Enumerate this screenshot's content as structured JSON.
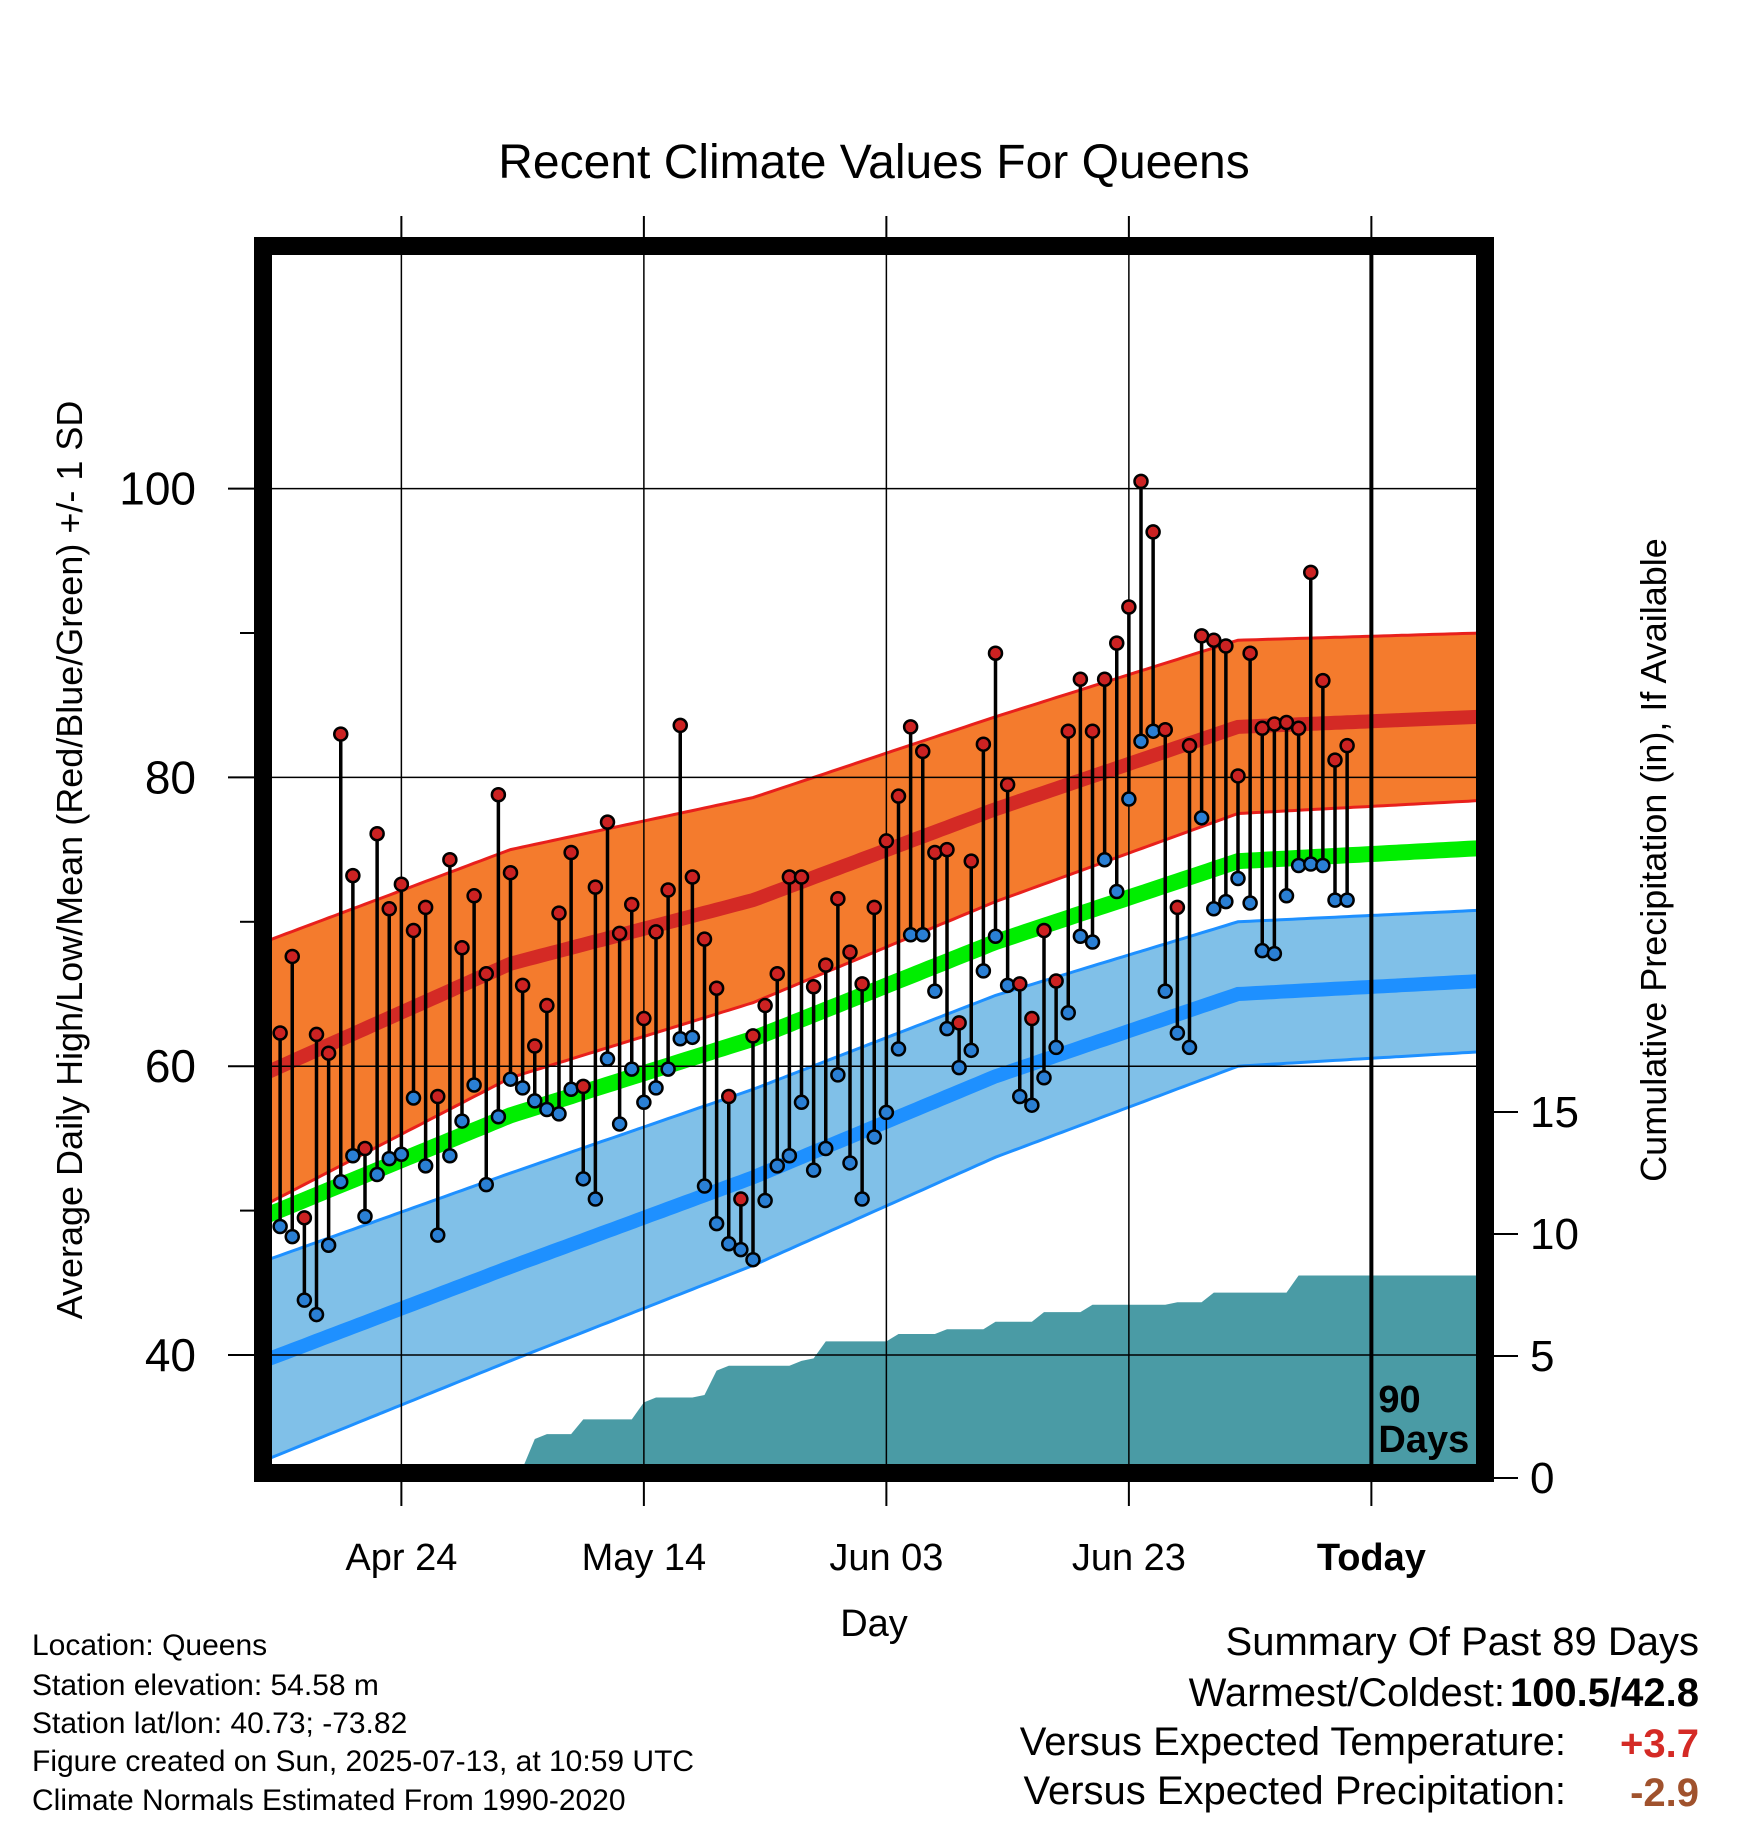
{
  "chart_data": {
    "type": "line",
    "title": "Recent Climate Values For Queens",
    "xlabel": "Day",
    "ylabel": "Average Daily High/Low/Mean (Red/Blue/Green) +/- 1 SD",
    "y2label": "Cumulative Precipitation (in), If Available",
    "ylim": [
      32,
      106
    ],
    "y2lim": [
      0,
      25.4
    ],
    "y_ticks": [
      40,
      60,
      80,
      100
    ],
    "y2_ticks": [
      0,
      5,
      10,
      15
    ],
    "x_tick_labels": [
      {
        "day": 11,
        "label": "Apr 24"
      },
      {
        "day": 31,
        "label": "May 14"
      },
      {
        "day": 51,
        "label": "Jun 03"
      },
      {
        "day": 71,
        "label": "Jun 23"
      },
      {
        "day": 91,
        "label": "Today"
      }
    ],
    "today_day": 91,
    "today_annotation": [
      "90",
      "Days"
    ],
    "grid": true,
    "colors": {
      "high_band": "#f47b2d",
      "high_mean": "#d42a25",
      "high_edge": "#e8201c",
      "low_band": "#80c0e8",
      "low_mean": "#1e90ff",
      "low_edge": "#1e90ff",
      "mean_line": "#00ee00",
      "precip": "#4a9ba5",
      "high_marker": "#cc2222",
      "low_marker": "#2a7fd4"
    },
    "normals": {
      "high_mean": [
        [
          0,
          59.6
        ],
        [
          20,
          67.1
        ],
        [
          40,
          71.5
        ],
        [
          60,
          77.8
        ],
        [
          80,
          83.5
        ],
        [
          100,
          84.2
        ]
      ],
      "high_sd": [
        [
          0,
          9.1
        ],
        [
          20,
          7.9
        ],
        [
          40,
          7.1
        ],
        [
          60,
          6.4
        ],
        [
          80,
          6.0
        ],
        [
          100,
          5.8
        ]
      ],
      "low_mean": [
        [
          0,
          39.7
        ],
        [
          20,
          46.1
        ],
        [
          40,
          52.3
        ],
        [
          60,
          59.3
        ],
        [
          80,
          65.0
        ],
        [
          100,
          65.9
        ]
      ],
      "low_sd": [
        [
          0,
          6.9
        ],
        [
          20,
          6.5
        ],
        [
          40,
          6.1
        ],
        [
          60,
          5.6
        ],
        [
          80,
          5.0
        ],
        [
          100,
          4.9
        ]
      ],
      "mean_normal": [
        [
          0,
          49.7
        ],
        [
          20,
          56.6
        ],
        [
          40,
          61.9
        ],
        [
          60,
          68.6
        ],
        [
          80,
          74.2
        ],
        [
          100,
          75.1
        ]
      ]
    },
    "days": [
      1,
      2,
      3,
      4,
      5,
      6,
      7,
      8,
      9,
      10,
      11,
      12,
      13,
      14,
      15,
      16,
      17,
      18,
      19,
      20,
      21,
      22,
      23,
      24,
      25,
      26,
      27,
      28,
      29,
      30,
      31,
      32,
      33,
      34,
      35,
      36,
      37,
      38,
      39,
      40,
      41,
      42,
      43,
      44,
      45,
      46,
      47,
      48,
      49,
      50,
      51,
      52,
      53,
      54,
      55,
      56,
      57,
      58,
      59,
      60,
      61,
      62,
      63,
      64,
      65,
      66,
      67,
      68,
      69,
      70,
      71,
      72,
      73,
      74,
      75,
      76,
      77,
      78,
      79,
      80,
      81,
      82,
      83,
      84,
      85,
      86,
      87,
      88,
      89
    ],
    "series": [
      {
        "name": "Red",
        "values": [
          62.3,
          67.6,
          49.5,
          62.2,
          60.9,
          83.0,
          73.2,
          54.3,
          76.1,
          70.9,
          72.6,
          69.4,
          71.0,
          57.9,
          74.3,
          68.2,
          71.8,
          66.4,
          78.8,
          73.4,
          65.6,
          61.4,
          64.2,
          70.6,
          74.8,
          58.6,
          72.4,
          76.9,
          69.2,
          71.2,
          63.3,
          69.3,
          72.2,
          83.6,
          73.1,
          68.8,
          65.4,
          57.9,
          50.8,
          62.1,
          64.2,
          66.4,
          73.1,
          73.1,
          65.5,
          67.0,
          71.6,
          67.9,
          65.7,
          71.0,
          75.6,
          78.7,
          83.5,
          81.8,
          74.8,
          75.0,
          63.0,
          74.2,
          82.3,
          88.6,
          79.5,
          65.7,
          63.3,
          69.4,
          65.9,
          83.2,
          86.8,
          83.2,
          86.8,
          89.3,
          91.8,
          100.5,
          97.0,
          83.3,
          71.0,
          82.2,
          89.8,
          89.5,
          89.1,
          80.1,
          88.6,
          83.4,
          83.7,
          83.8,
          83.4,
          94.2,
          86.7,
          81.2,
          82.2
        ]
      },
      {
        "name": "Blue",
        "values": [
          48.9,
          48.2,
          43.8,
          42.8,
          47.6,
          52.0,
          53.8,
          49.6,
          52.5,
          53.6,
          53.9,
          57.8,
          53.1,
          48.3,
          53.8,
          56.2,
          58.7,
          51.8,
          56.5,
          59.1,
          58.5,
          57.6,
          57.0,
          56.7,
          58.4,
          52.2,
          50.8,
          60.5,
          56.0,
          59.8,
          57.5,
          58.5,
          59.8,
          61.9,
          62.0,
          51.7,
          49.1,
          47.7,
          47.3,
          46.6,
          50.7,
          53.1,
          53.8,
          57.5,
          52.8,
          54.3,
          59.4,
          53.3,
          50.8,
          55.1,
          56.8,
          61.2,
          69.1,
          69.1,
          65.2,
          62.6,
          59.9,
          61.1,
          66.6,
          69.0,
          65.6,
          57.9,
          57.3,
          59.2,
          61.3,
          63.7,
          69.0,
          68.6,
          74.3,
          72.1,
          78.5,
          82.5,
          83.2,
          65.2,
          62.3,
          61.3,
          77.2,
          70.9,
          71.4,
          73.0,
          71.3,
          68.0,
          67.8,
          71.8,
          73.9,
          74.0,
          73.9,
          71.5,
          71.5
        ]
      }
    ],
    "precip_cumulative": [
      [
        11,
        0.0
      ],
      [
        12,
        0.2
      ],
      [
        13,
        0.2
      ],
      [
        20,
        0.2
      ],
      [
        21,
        0.4
      ],
      [
        22,
        1.6
      ],
      [
        23,
        1.8
      ],
      [
        25,
        1.8
      ],
      [
        26,
        2.4
      ],
      [
        30,
        2.4
      ],
      [
        31,
        3.1
      ],
      [
        32,
        3.3
      ],
      [
        35,
        3.3
      ],
      [
        36,
        3.4
      ],
      [
        37,
        4.4
      ],
      [
        38,
        4.6
      ],
      [
        43,
        4.6
      ],
      [
        44,
        4.8
      ],
      [
        45,
        4.9
      ],
      [
        46,
        5.6
      ],
      [
        51,
        5.6
      ],
      [
        52,
        5.9
      ],
      [
        55,
        5.9
      ],
      [
        56,
        6.1
      ],
      [
        59,
        6.1
      ],
      [
        60,
        6.4
      ],
      [
        63,
        6.4
      ],
      [
        64,
        6.8
      ],
      [
        67,
        6.8
      ],
      [
        68,
        7.1
      ],
      [
        74,
        7.1
      ],
      [
        75,
        7.2
      ],
      [
        77,
        7.2
      ],
      [
        78,
        7.6
      ],
      [
        84,
        7.6
      ],
      [
        85,
        8.3
      ],
      [
        100,
        8.3
      ]
    ]
  },
  "info": {
    "location": "Location: Queens",
    "elevation": "Station elevation: 54.58 m",
    "latlon": "Station lat/lon: 40.73; -73.82",
    "created": "Figure created on Sun, 2025-07-13, at 10:59 UTC",
    "normals": "Climate Normals Estimated From 1990-2020"
  },
  "summary": {
    "title": "Summary Of Past 89 Days",
    "warm_cold_label": "Warmest/Coldest:",
    "warm_cold_value": "100.5/42.8",
    "temp_label": "Versus Expected Temperature:",
    "temp_value": "+3.7",
    "temp_color": "#d42a25",
    "precip_label": "Versus Expected Precipitation:",
    "precip_value": "-2.9",
    "precip_color": "#a0522d"
  }
}
